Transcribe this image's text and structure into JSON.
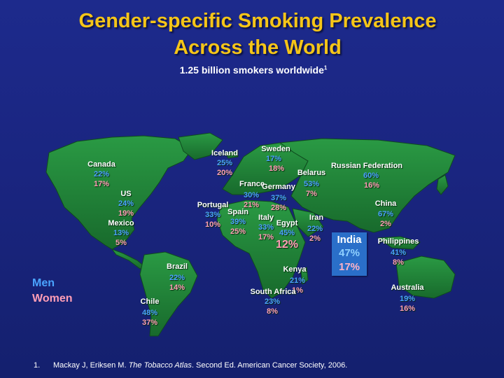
{
  "title_line1": "Gender-specific Smoking Prevalence",
  "title_line2": "Across the World",
  "subtitle": "1.25 billion smokers worldwide",
  "subtitle_ref": "1",
  "legend": {
    "men": "Men",
    "women": "Women"
  },
  "colors": {
    "title": "#f5c518",
    "men": "#4aa3ff",
    "women": "#ff9eb6",
    "land": "#1e7a34",
    "ocean": "#1a2580",
    "india_box": "#2a6fc9"
  },
  "countries": {
    "canada": {
      "name": "Canada",
      "men": "22%",
      "women": "17%"
    },
    "us": {
      "name": "US",
      "men": "24%",
      "women": "19%"
    },
    "mexico": {
      "name": "Mexico",
      "men": "13%",
      "women": "5%"
    },
    "iceland": {
      "name": "Iceland",
      "men": "25%",
      "women": "20%"
    },
    "sweden": {
      "name": "Sweden",
      "men": "17%",
      "women": "18%"
    },
    "russia": {
      "name": "Russian Federation",
      "men": "60%",
      "women": "16%"
    },
    "belarus": {
      "name": "Belarus",
      "men": "53%",
      "women": "7%"
    },
    "france": {
      "name": "France",
      "men": "30%",
      "women": "21%"
    },
    "germany": {
      "name": "Germany",
      "men": "37%",
      "women": "28%"
    },
    "portugal": {
      "name": "Portugal",
      "men": "33%",
      "women": "10%"
    },
    "spain": {
      "name": "Spain",
      "men": "39%",
      "women": "25%"
    },
    "italy": {
      "name": "Italy",
      "men": "33%",
      "women": "17%"
    },
    "egypt": {
      "name": "Egypt",
      "men": "45%",
      "women": "12%"
    },
    "iran": {
      "name": "Iran",
      "men": "22%",
      "women": "2%"
    },
    "china": {
      "name": "China",
      "men": "67%",
      "women": "2%"
    },
    "india": {
      "name": "India",
      "men": "47%",
      "women": "17%"
    },
    "philippines": {
      "name": "Philippines",
      "men": "41%",
      "women": "8%"
    },
    "kenya": {
      "name": "Kenya",
      "men": "21%",
      "women": "1%"
    },
    "south_africa": {
      "name": "South Africa",
      "men": "23%",
      "women": "8%"
    },
    "brazil": {
      "name": "Brazil",
      "men": "22%",
      "women": "14%"
    },
    "chile": {
      "name": "Chile",
      "men": "48%",
      "women": "37%"
    },
    "australia": {
      "name": "Australia",
      "men": "19%",
      "women": "16%"
    }
  },
  "footnote": {
    "number": "1.",
    "text_before": "Mackay J, Eriksen M. ",
    "title": "The Tobacco Atlas",
    "text_after": ". Second Ed. American Cancer Society, 2006."
  }
}
